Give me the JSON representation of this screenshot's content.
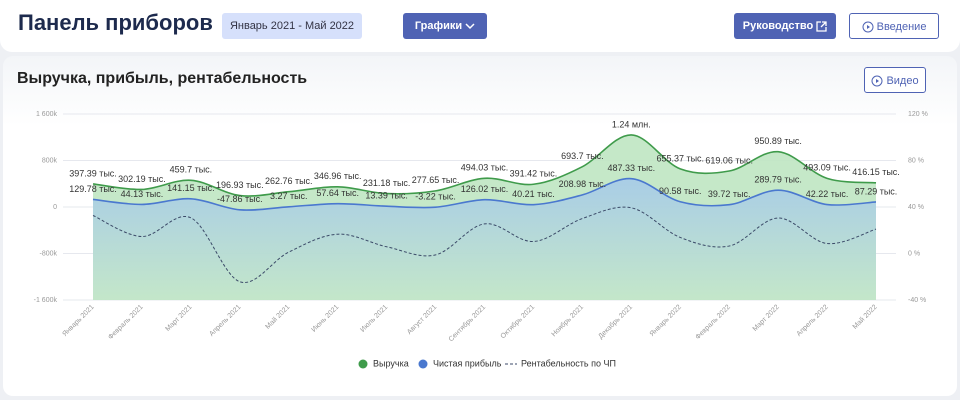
{
  "header": {
    "title": "Панель приборов",
    "date_range": "Январь 2021 - Май 2022",
    "charts_button": "Графики",
    "guide_button": "Руководство",
    "intro_button": "Введение"
  },
  "card": {
    "video_button": "Видео"
  },
  "chart_data": {
    "type": "line",
    "title": "Выручка, прибыль, рентабельность",
    "categories": [
      "Январь 2021",
      "Февраль 2021",
      "Март 2021",
      "Апрель 2021",
      "Май 2021",
      "Июнь 2021",
      "Июль 2021",
      "Август 2021",
      "Сентябрь 2021",
      "Октябрь 2021",
      "Ноябрь 2021",
      "Декабрь 2021",
      "Январь 2022",
      "Февраль 2022",
      "Март 2022",
      "Апрель 2022",
      "Май 2022"
    ],
    "series": [
      {
        "name": "Выручка",
        "color": "#3f9b4b",
        "fill": "#bfe5c2",
        "values": [
          397390,
          302190,
          459700,
          196930,
          262760,
          346960,
          231180,
          277650,
          494030,
          391420,
          693700,
          1240000,
          655370,
          619060,
          950890,
          493090,
          416150
        ],
        "value_labels": [
          "397.39 тыс.",
          "302.19 тыс.",
          "459.7 тыс.",
          "196.93 тыс.",
          "262.76 тыс.",
          "346.96 тыс.",
          "231.18 тыс.",
          "277.65 тыс.",
          "494.03 тыс.",
          "391.42 тыс.",
          "693.7 тыс.",
          "1.24 млн.",
          "655.37 тыс.",
          "619.06 тыс.",
          "950.89 тыс.",
          "493.09 тыс.",
          "416.15 тыс."
        ]
      },
      {
        "name": "Чистая прибыль",
        "color": "#4a78cf",
        "fill": "#a9cde6",
        "values": [
          129780,
          44130,
          141150,
          -47860,
          3270,
          57640,
          13390,
          -3220,
          126020,
          40210,
          208980,
          487330,
          90580,
          39720,
          289790,
          42220,
          87290
        ],
        "value_labels": [
          "129.78 тыс.",
          "44.13 тыс.",
          "141.15 тыс.",
          "-47.86 тыс.",
          "3.27 тыс.",
          "57.64 тыс.",
          "13.39 тыс.",
          "-3.22 тыс.",
          "126.02 тыс.",
          "40.21 тыс.",
          "208.98 тыс.",
          "487.33 тыс.",
          "90.58 тыс.",
          "39.72 тыс.",
          "289.79 тыс.",
          "42.22 тыс.",
          "87.29 тыс."
        ]
      },
      {
        "name": "Рентабельность по ЧП",
        "color": "#3b4a68",
        "axis": "y2",
        "dashed": true,
        "values": [
          32.7,
          14.6,
          30.7,
          -24.3,
          1.2,
          16.6,
          5.8,
          -1.2,
          25.5,
          10.3,
          30.1,
          39.3,
          13.8,
          6.4,
          30.5,
          8.6,
          21.0
        ]
      }
    ],
    "ylim": [
      -1600000,
      1600000
    ],
    "yticks": [
      {
        "value": -1600000,
        "label": "-1 600k"
      },
      {
        "value": -800000,
        "label": "-800k"
      },
      0,
      {
        "value": 800000,
        "label": "800k"
      },
      {
        "value": 1600000,
        "label": "1 600k"
      }
    ],
    "y2lim": [
      -40,
      120
    ],
    "y2ticks": [
      {
        "value": -40,
        "label": "-40 %"
      },
      {
        "value": 0,
        "label": "0 %"
      },
      {
        "value": 40,
        "label": "40 %"
      },
      {
        "value": 80,
        "label": "80 %"
      },
      {
        "value": 120,
        "label": "120 %"
      }
    ],
    "grid": true
  }
}
